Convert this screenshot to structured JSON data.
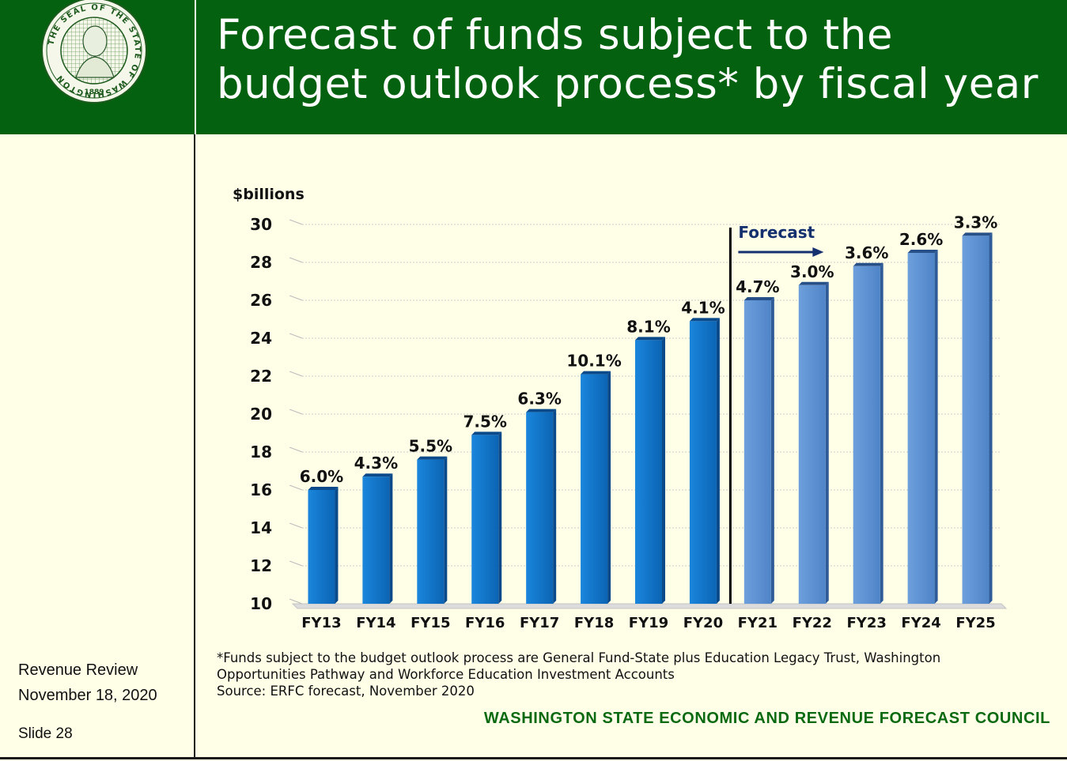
{
  "header": {
    "title_line1": "Forecast of funds subject to the",
    "title_line2": "budget outlook process* by fiscal year",
    "seal_text": "THE SEAL OF THE STATE OF WASHINGTON",
    "seal_year": "1889"
  },
  "sidebar": {
    "line1": "Revenue Review",
    "line2": "November 18, 2020",
    "slide": "Slide 28"
  },
  "footnote": {
    "line1": "*Funds subject to the budget outlook process are General Fund-State plus Education Legacy Trust, Washington",
    "line2": "Opportunities Pathway and Workforce Education Investment Accounts",
    "line3": "Source: ERFC forecast, November 2020"
  },
  "footer": {
    "council": "WASHINGTON STATE ECONOMIC AND REVENUE FORECAST COUNCIL"
  },
  "colors": {
    "header_green": "#036110",
    "actual_bar": "#1276c9",
    "forecast_bar": "#5b8fd0",
    "forecast_label": "#15306e",
    "council_green": "#0a6a12"
  },
  "chart_data": {
    "type": "bar",
    "ylabel": "$billions",
    "ylim": [
      10,
      30
    ],
    "yticks": [
      10,
      12,
      14,
      16,
      18,
      20,
      22,
      24,
      26,
      28,
      30
    ],
    "categories": [
      "FY13",
      "FY14",
      "FY15",
      "FY16",
      "FY17",
      "FY18",
      "FY19",
      "FY20",
      "FY21",
      "FY22",
      "FY23",
      "FY24",
      "FY25"
    ],
    "values": [
      16.0,
      16.7,
      17.6,
      18.9,
      20.1,
      22.1,
      23.9,
      24.9,
      26.0,
      26.8,
      27.8,
      28.5,
      29.4
    ],
    "labels": [
      "6.0%",
      "4.3%",
      "5.5%",
      "7.5%",
      "6.3%",
      "10.1%",
      "8.1%",
      "4.1%",
      "4.7%",
      "3.0%",
      "3.6%",
      "2.6%",
      "3.3%"
    ],
    "forecast_start_index": 8,
    "forecast_label": "Forecast",
    "grid": true
  }
}
